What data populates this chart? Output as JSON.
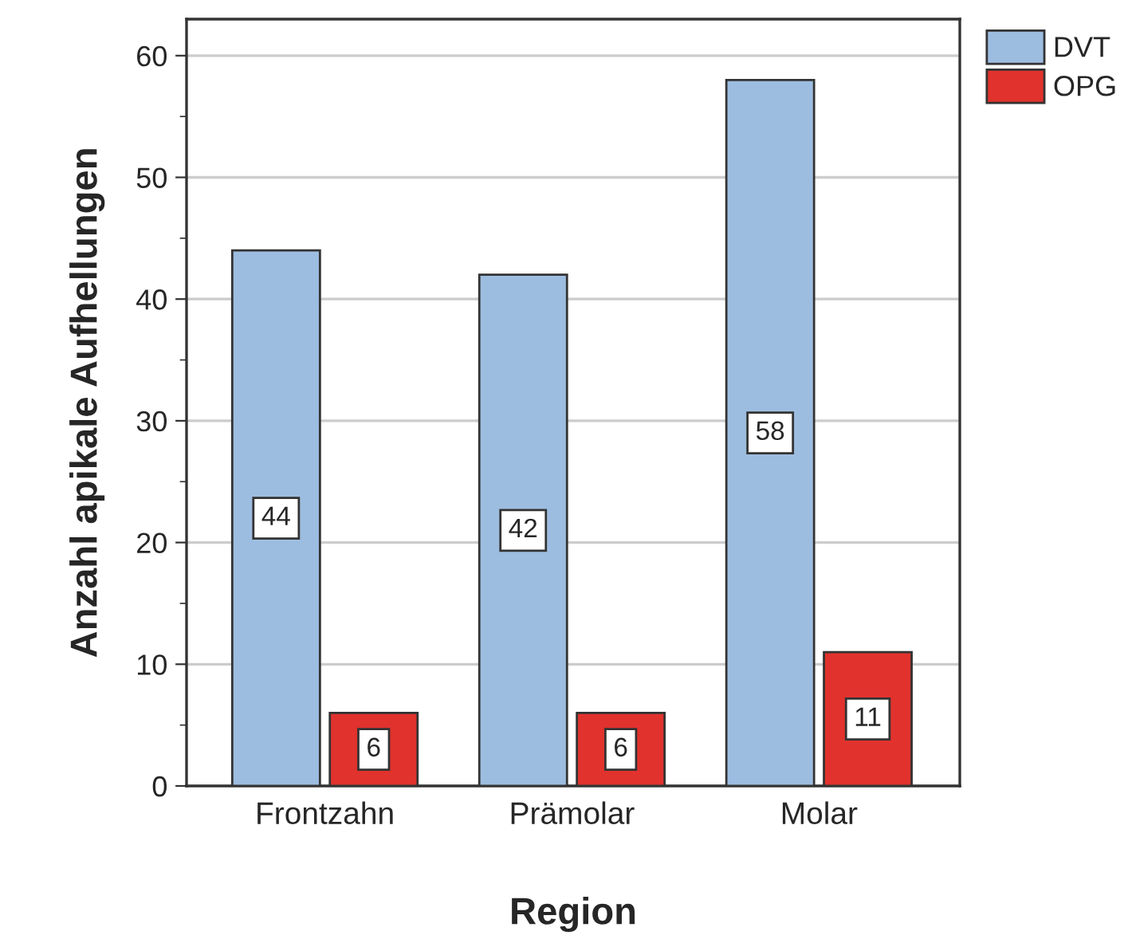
{
  "chart_data": {
    "type": "bar",
    "xlabel": "Region",
    "ylabel": "Anzahl apikale Aufhellungen",
    "categories": [
      "Frontzahn",
      "Prämolar",
      "Molar"
    ],
    "series": [
      {
        "name": "DVT",
        "color": "#9dbde0",
        "values": [
          44,
          42,
          58
        ]
      },
      {
        "name": "OPG",
        "color": "#e1322d",
        "values": [
          6,
          6,
          11
        ]
      }
    ],
    "ylim": [
      0,
      63
    ],
    "yticks": [
      0,
      10,
      20,
      30,
      40,
      50,
      60
    ],
    "grid": "y",
    "legend": "top right",
    "data_labels": true
  }
}
